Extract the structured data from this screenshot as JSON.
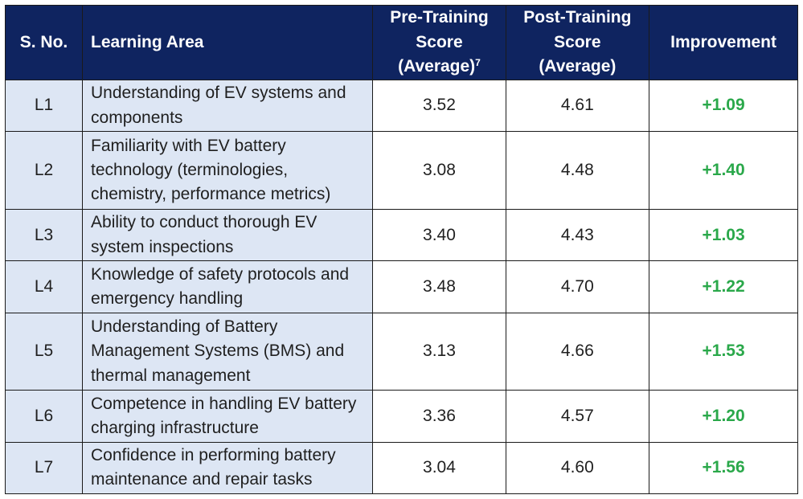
{
  "table": {
    "headers": {
      "sno": "S. No.",
      "area": "Learning Area",
      "pre_line1": "Pre-Training",
      "pre_line2": "Score",
      "pre_line3": "(Average)",
      "pre_footnote": "7",
      "post_line1": "Post-Training",
      "post_line2": "Score",
      "post_line3": "(Average)",
      "improvement": "Improvement"
    },
    "rows": [
      {
        "sno": "L1",
        "area": "Understanding of EV systems and components",
        "pre": "3.52",
        "post": "4.61",
        "improvement": "+1.09"
      },
      {
        "sno": "L2",
        "area": "Familiarity with EV battery technology (terminologies, chemistry, performance metrics)",
        "pre": "3.08",
        "post": "4.48",
        "improvement": "+1.40"
      },
      {
        "sno": "L3",
        "area": "Ability to conduct thorough EV system inspections",
        "pre": "3.40",
        "post": "4.43",
        "improvement": "+1.03"
      },
      {
        "sno": "L4",
        "area": "Knowledge of safety protocols and emergency handling",
        "pre": "3.48",
        "post": "4.70",
        "improvement": "+1.22"
      },
      {
        "sno": "L5",
        "area": "Understanding of Battery Management Systems (BMS) and thermal management",
        "pre": "3.13",
        "post": "4.66",
        "improvement": "+1.53"
      },
      {
        "sno": "L6",
        "area": "Competence in handling EV battery charging infrastructure",
        "pre": "3.36",
        "post": "4.57",
        "improvement": "+1.20"
      },
      {
        "sno": "L7",
        "area": "Confidence in performing battery maintenance and repair tasks",
        "pre": "3.04",
        "post": "4.60",
        "improvement": "+1.56"
      }
    ]
  },
  "colors": {
    "header_bg": "#0f2460",
    "header_text": "#ffffff",
    "label_cell_bg": "#dde6f4",
    "improvement_text": "#2aa84a"
  }
}
